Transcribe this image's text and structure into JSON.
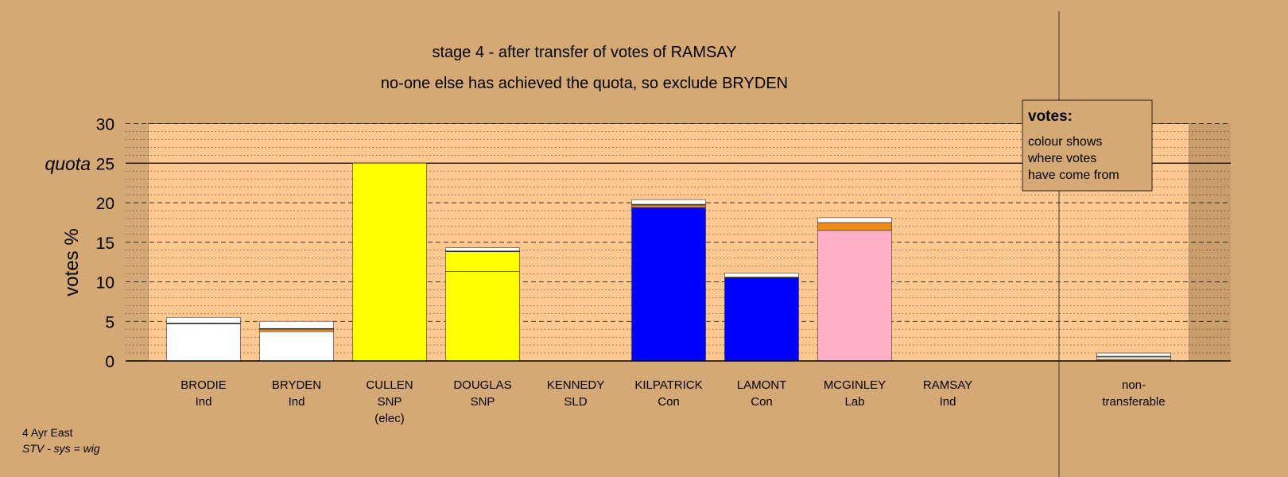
{
  "chart_data": {
    "type": "bar",
    "title": "stage 4 - after transfer of votes of RAMSAY",
    "subtitle": "no-one else has achieved the quota, so exclude BRYDEN",
    "ylabel": "votes %",
    "ylim": [
      0,
      30
    ],
    "yticks": [
      0,
      5,
      10,
      15,
      20,
      25,
      30
    ],
    "quota_value": 25,
    "quota_label": "quota",
    "grid": "dashed major every 5, dotted minor every 1",
    "categories": [
      {
        "name": "BRODIE",
        "party": "Ind",
        "note": ""
      },
      {
        "name": "BRYDEN",
        "party": "Ind",
        "note": ""
      },
      {
        "name": "CULLEN",
        "party": "SNP",
        "note": "(elec)"
      },
      {
        "name": "DOUGLAS",
        "party": "SNP",
        "note": ""
      },
      {
        "name": "KENNEDY",
        "party": "SLD",
        "note": ""
      },
      {
        "name": "KILPATRICK",
        "party": "Con",
        "note": ""
      },
      {
        "name": "LAMONT",
        "party": "Con",
        "note": ""
      },
      {
        "name": "MCGINLEY",
        "party": "Lab",
        "note": ""
      },
      {
        "name": "RAMSAY",
        "party": "Ind",
        "note": ""
      }
    ],
    "nontransferable_label": [
      "non-",
      "transferable"
    ],
    "bars": [
      {
        "segments": [
          {
            "value": 4.7,
            "color": "#ffffff"
          },
          {
            "value": 0.1,
            "color": "#000000"
          },
          {
            "value": 0.7,
            "color": "#ffffff"
          }
        ]
      },
      {
        "segments": [
          {
            "value": 3.7,
            "color": "#ffffff"
          },
          {
            "value": 0.3,
            "color": "#f08a1c"
          },
          {
            "value": 0.1,
            "color": "#000000"
          },
          {
            "value": 0.9,
            "color": "#ffffff"
          }
        ]
      },
      {
        "segments": [
          {
            "value": 25.0,
            "color": "#ffff00"
          }
        ]
      },
      {
        "segments": [
          {
            "value": 11.3,
            "color": "#ffff00"
          },
          {
            "value": 2.5,
            "color": "#ffff00"
          },
          {
            "value": 0.1,
            "color": "#000000"
          },
          {
            "value": 0.4,
            "color": "#ffffff"
          }
        ]
      },
      {
        "segments": []
      },
      {
        "segments": [
          {
            "value": 19.4,
            "color": "#0000ff"
          },
          {
            "value": 0.3,
            "color": "#f08a1c"
          },
          {
            "value": 0.1,
            "color": "#000000"
          },
          {
            "value": 0.6,
            "color": "#ffffff"
          }
        ]
      },
      {
        "segments": [
          {
            "value": 10.5,
            "color": "#0000ff"
          },
          {
            "value": 0.1,
            "color": "#000000"
          },
          {
            "value": 0.5,
            "color": "#ffffff"
          }
        ]
      },
      {
        "segments": [
          {
            "value": 16.5,
            "color": "#ffb0c4"
          },
          {
            "value": 1.0,
            "color": "#f08a1c"
          },
          {
            "value": 0.6,
            "color": "#ffffff"
          }
        ]
      },
      {
        "segments": []
      }
    ],
    "nontransferable": {
      "segments": [
        {
          "value": 0.2,
          "color": "#f08a1c"
        },
        {
          "value": 0.3,
          "color": "#ffffff"
        },
        {
          "value": 0.1,
          "color": "#f08a1c"
        },
        {
          "value": 0.4,
          "color": "#ffffff"
        }
      ]
    },
    "legend": {
      "title": "votes:",
      "lines": [
        "colour shows",
        "where votes",
        "have come from"
      ]
    },
    "colors": {
      "background": "#d4a976",
      "plot": "#fec890",
      "axis": "#000000"
    }
  },
  "footer": {
    "ward": "4 Ayr East",
    "system": "STV - sys = wig"
  }
}
